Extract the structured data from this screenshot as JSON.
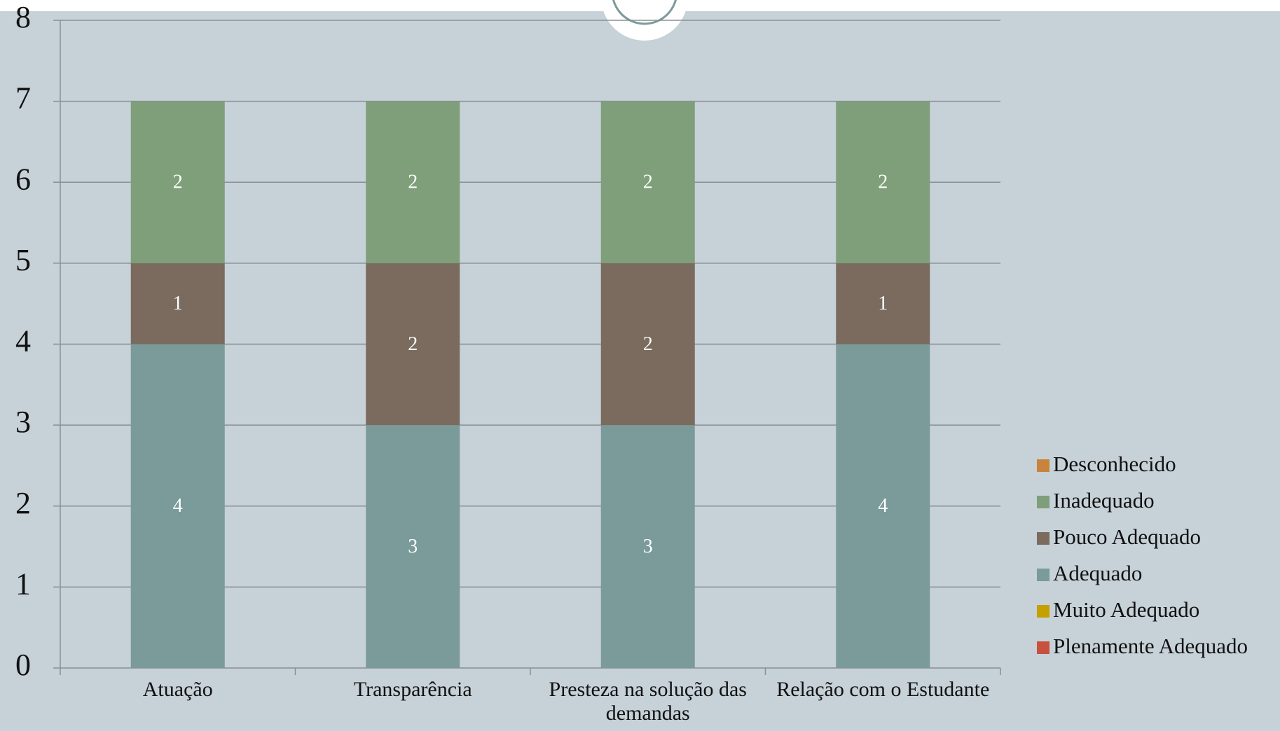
{
  "chart_data": {
    "type": "stacked_bar",
    "categories": [
      "Atuação",
      "Transparência",
      "Presteza na solução das demandas",
      "Relação com o Estudante"
    ],
    "series": [
      {
        "name": "Plenamente Adequado",
        "color": "#c8503e",
        "values": [
          0,
          0,
          0,
          0
        ]
      },
      {
        "name": "Muito Adequado",
        "color": "#c4a000",
        "values": [
          0,
          0,
          0,
          0
        ]
      },
      {
        "name": "Adequado",
        "color": "#7b9a9a",
        "values": [
          4,
          3,
          3,
          4
        ]
      },
      {
        "name": "Pouco Adequado",
        "color": "#7a6b5e",
        "values": [
          1,
          2,
          2,
          1
        ]
      },
      {
        "name": "Inadequado",
        "color": "#7f9e7a",
        "values": [
          2,
          2,
          2,
          2
        ]
      },
      {
        "name": "Desconhecido",
        "color": "#c8843e",
        "values": [
          0,
          0,
          0,
          0
        ]
      }
    ],
    "ylim": [
      0,
      8
    ],
    "yticks": [
      0,
      1,
      2,
      3,
      4,
      5,
      6,
      7,
      8
    ],
    "grid": true,
    "legend": "right"
  }
}
